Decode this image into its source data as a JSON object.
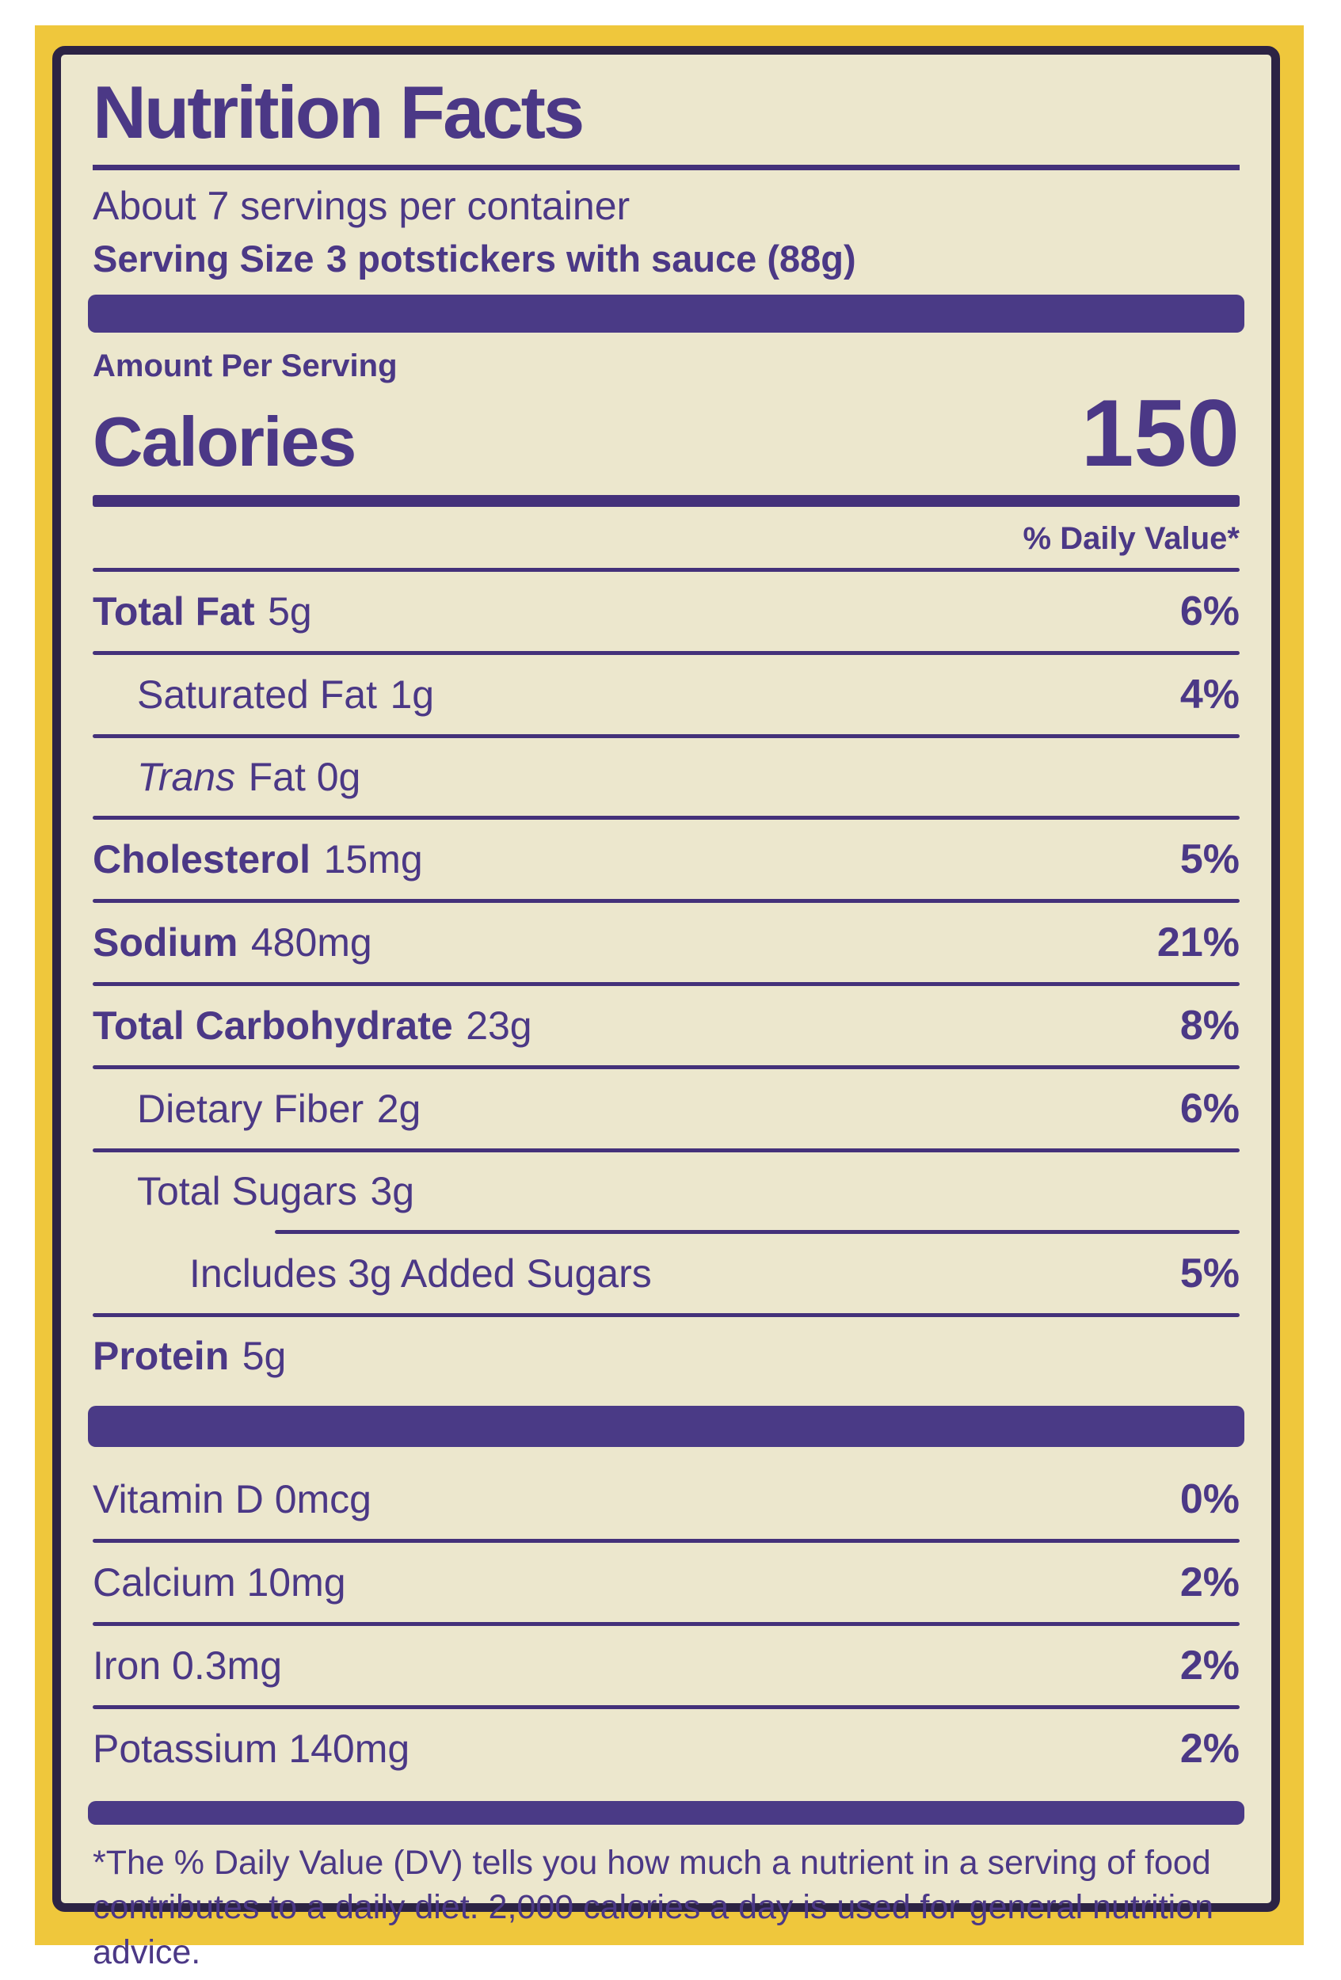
{
  "colors": {
    "package_yellow": "#efc73c",
    "label_cream": "#ece7cd",
    "ink_purple": "#4b3886",
    "border_dark": "#2c2344"
  },
  "label": {
    "title": "Nutrition Facts",
    "servings_line": "About 7 servings per container",
    "serving_size_label": "Serving Size",
    "serving_size_value": "3 potstickers with sauce (88g)",
    "amount_per_serving": "Amount Per Serving",
    "calories_label": "Calories",
    "calories_value": "150",
    "daily_value_header": "% Daily Value*",
    "rows": [
      {
        "name": "Total Fat",
        "amount": "5g",
        "dv": "6%"
      },
      {
        "name": "Saturated Fat",
        "amount": "1g",
        "dv": "4%"
      },
      {
        "name": "Trans",
        "amount": "Fat 0g",
        "dv": ""
      },
      {
        "name": "Cholesterol",
        "amount": "15mg",
        "dv": "5%"
      },
      {
        "name": "Sodium",
        "amount": "480mg",
        "dv": "21%"
      },
      {
        "name": "Total Carbohydrate",
        "amount": "23g",
        "dv": "8%"
      },
      {
        "name": "Dietary Fiber",
        "amount": "2g",
        "dv": "6%"
      },
      {
        "name": "Total Sugars",
        "amount": "3g",
        "dv": ""
      },
      {
        "name": "Includes 3g Added Sugars",
        "amount": "",
        "dv": "5%"
      },
      {
        "name": "Protein",
        "amount": "5g",
        "dv": ""
      }
    ],
    "vitamins": [
      {
        "name": "Vitamin D 0mcg",
        "dv": "0%"
      },
      {
        "name": "Calcium 10mg",
        "dv": "2%"
      },
      {
        "name": "Iron 0.3mg",
        "dv": "2%"
      },
      {
        "name": "Potassium 140mg",
        "dv": "2%"
      }
    ],
    "footnote": "*The % Daily Value (DV) tells you how much a nutrient in a serving of food contributes to a daily diet. 2,000 calories a day is used for general nutrition advice."
  }
}
